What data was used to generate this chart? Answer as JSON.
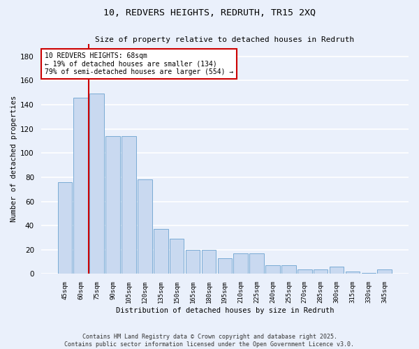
{
  "title": "10, REDVERS HEIGHTS, REDRUTH, TR15 2XQ",
  "subtitle": "Size of property relative to detached houses in Redruth",
  "xlabel": "Distribution of detached houses by size in Redruth",
  "ylabel": "Number of detached properties",
  "categories": [
    "45sqm",
    "60sqm",
    "75sqm",
    "90sqm",
    "105sqm",
    "120sqm",
    "135sqm",
    "150sqm",
    "165sqm",
    "180sqm",
    "195sqm",
    "210sqm",
    "225sqm",
    "240sqm",
    "255sqm",
    "270sqm",
    "285sqm",
    "300sqm",
    "315sqm",
    "330sqm",
    "345sqm"
  ],
  "values": [
    76,
    146,
    149,
    114,
    114,
    78,
    37,
    29,
    20,
    20,
    13,
    17,
    17,
    7,
    7,
    4,
    4,
    6,
    2,
    1,
    4
  ],
  "bar_color": "#c9d9f0",
  "bar_edge_color": "#7aabd4",
  "background_color": "#eaf0fb",
  "grid_color": "#ffffff",
  "redline_x": 1.5,
  "annotation_text": "10 REDVERS HEIGHTS: 68sqm\n← 19% of detached houses are smaller (134)\n79% of semi-detached houses are larger (554) →",
  "annotation_box_color": "#ffffff",
  "annotation_box_edge": "#cc0000",
  "footer1": "Contains HM Land Registry data © Crown copyright and database right 2025.",
  "footer2": "Contains public sector information licensed under the Open Government Licence v3.0.",
  "ylim": [
    0,
    190
  ],
  "yticks": [
    0,
    20,
    40,
    60,
    80,
    100,
    120,
    140,
    160,
    180
  ]
}
